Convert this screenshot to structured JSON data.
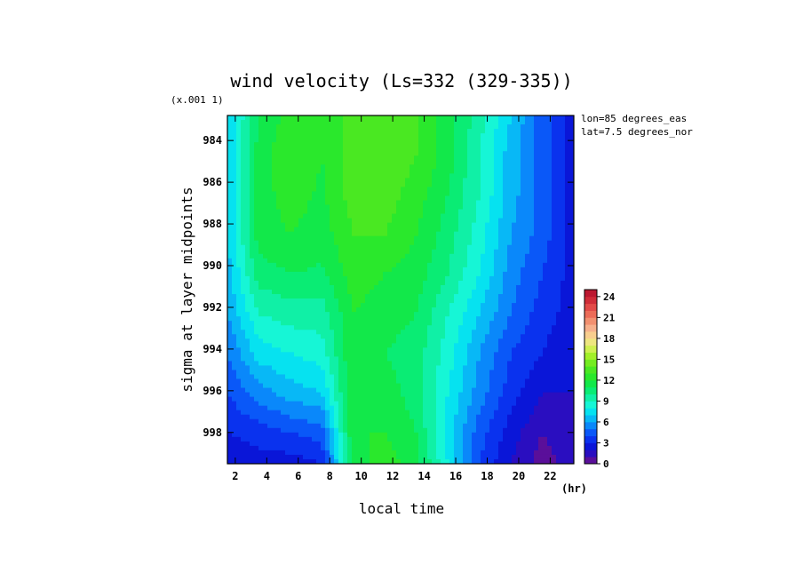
{
  "chart_data": {
    "type": "heatmap",
    "title": "wind velocity (Ls=332 (329-335))",
    "xlabel": "local time",
    "ylabel": "sigma at layer midpoints",
    "x_unit": "(hr)",
    "y_scale_note": "(x.001 1)",
    "annotations": [
      "lon=85 degrees_eas",
      "lat=7.5 degrees_nor"
    ],
    "xlim": [
      1.5,
      23.5
    ],
    "ylim": [
      999.5,
      982.8
    ],
    "x_ticks": [
      2,
      4,
      6,
      8,
      10,
      12,
      14,
      16,
      18,
      20,
      22
    ],
    "y_ticks": [
      984,
      986,
      988,
      990,
      992,
      994,
      996,
      998
    ],
    "x": [
      1.5,
      3.5,
      5.5,
      7.5,
      9.5,
      11.5,
      13.5,
      15.5,
      17.5,
      19.5,
      21.5,
      23.5
    ],
    "y": [
      982.8,
      984.7,
      986.6,
      988.5,
      990.4,
      992.3,
      994.2,
      996.1,
      998.0,
      999.5
    ],
    "z": [
      [
        7.0,
        11.0,
        12.5,
        12.0,
        13.5,
        14.0,
        13.0,
        11.5,
        9.5,
        7.0,
        4.5,
        2.5
      ],
      [
        7.0,
        11.5,
        12.8,
        12.0,
        13.5,
        14.0,
        13.0,
        11.5,
        9.0,
        6.5,
        4.5,
        2.5
      ],
      [
        7.0,
        11.5,
        12.5,
        11.8,
        13.5,
        13.5,
        12.5,
        11.0,
        9.0,
        6.5,
        4.5,
        2.5
      ],
      [
        7.0,
        11.5,
        12.0,
        11.5,
        13.0,
        13.0,
        12.0,
        10.5,
        8.5,
        6.0,
        4.5,
        2.5
      ],
      [
        6.5,
        10.5,
        11.0,
        10.8,
        12.5,
        12.0,
        11.5,
        10.0,
        8.0,
        5.5,
        4.0,
        2.5
      ],
      [
        6.0,
        9.0,
        9.5,
        9.5,
        12.0,
        11.5,
        11.0,
        9.0,
        7.0,
        5.0,
        3.5,
        2.5
      ],
      [
        5.0,
        7.5,
        8.0,
        8.5,
        12.0,
        11.0,
        10.5,
        8.5,
        6.0,
        4.0,
        3.0,
        2.0
      ],
      [
        4.0,
        5.5,
        6.5,
        7.0,
        12.0,
        11.5,
        10.5,
        8.0,
        5.5,
        3.5,
        2.0,
        2.0
      ],
      [
        3.0,
        3.5,
        4.0,
        4.5,
        12.0,
        12.0,
        11.0,
        7.5,
        4.5,
        2.5,
        1.0,
        2.0
      ],
      [
        2.0,
        2.5,
        2.5,
        3.0,
        11.5,
        12.5,
        11.5,
        8.0,
        4.0,
        2.0,
        0.5,
        1.5
      ]
    ],
    "colorbar": {
      "levels": [
        0,
        1,
        2,
        3,
        4,
        5,
        6,
        7,
        8,
        9,
        10,
        11,
        12,
        13,
        14,
        15,
        16,
        17,
        18,
        19,
        20,
        21,
        22,
        23,
        24,
        25
      ],
      "tick_values": [
        0,
        3,
        6,
        9,
        12,
        15,
        18,
        21,
        24
      ],
      "colors": [
        "#5a0f9a",
        "#2a0ec0",
        "#0a16d8",
        "#0a32ee",
        "#0a58f8",
        "#0a88fa",
        "#08b8f6",
        "#06e2f0",
        "#16f6d6",
        "#10f0a6",
        "#0aec74",
        "#12e84a",
        "#2ae82c",
        "#4ae822",
        "#74ec20",
        "#a2f028",
        "#cff050",
        "#eee680",
        "#f8ce8e",
        "#f6b08c",
        "#f29070",
        "#ec6c58",
        "#e24a48",
        "#d02c38",
        "#bc1830"
      ]
    }
  }
}
